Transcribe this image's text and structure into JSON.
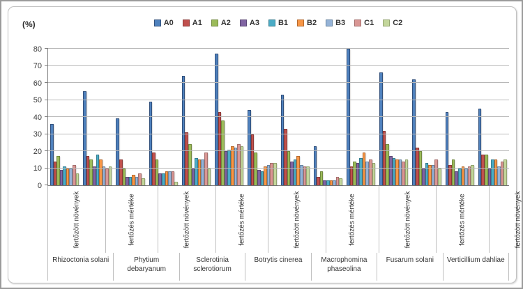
{
  "chart_data": {
    "type": "bar",
    "title": "",
    "ylabel": "(%)",
    "xlabel": "",
    "ylim": [
      0,
      80
    ],
    "ytick_step": 10,
    "grid": true,
    "legend_position": "top",
    "series": [
      {
        "name": "A0",
        "color": "#4F81BD",
        "border": "#31507C"
      },
      {
        "name": "A1",
        "color": "#C0504D",
        "border": "#8C3836"
      },
      {
        "name": "A2",
        "color": "#9BBB59",
        "border": "#71893E"
      },
      {
        "name": "A3",
        "color": "#8064A2",
        "border": "#5C4776"
      },
      {
        "name": "B1",
        "color": "#4BACC6",
        "border": "#357D91"
      },
      {
        "name": "B2",
        "color": "#F79646",
        "border": "#B56A2E"
      },
      {
        "name": "B3",
        "color": "#95B3D7",
        "border": "#6884A0"
      },
      {
        "name": "C1",
        "color": "#D99694",
        "border": "#A56F6D"
      },
      {
        "name": "C2",
        "color": "#C3D69B",
        "border": "#93A46F"
      }
    ],
    "sub_labels": [
      "fertőzött növények",
      "fertőzés mértéke"
    ],
    "groups": [
      {
        "name": "Rhizoctonia solani",
        "clusters": [
          [
            36,
            14,
            17,
            9,
            11,
            10,
            10,
            12,
            7
          ],
          [
            55,
            17,
            15,
            11,
            18,
            15,
            11,
            10,
            11
          ]
        ]
      },
      {
        "name": "Phytium debaryanum",
        "clusters": [
          [
            39,
            15,
            10,
            5,
            5,
            6,
            5,
            7,
            4
          ],
          [
            49,
            19,
            15,
            7,
            7,
            8,
            8,
            8,
            2
          ]
        ]
      },
      {
        "name": "Sclerotinia sclerotiorum",
        "clusters": [
          [
            64,
            31,
            24,
            10,
            16,
            15,
            15,
            19,
            10
          ],
          [
            77,
            43,
            38,
            20,
            21,
            23,
            22,
            24,
            23
          ]
        ]
      },
      {
        "name": "Botrytis cinerea",
        "clusters": [
          [
            44,
            30,
            19,
            9,
            8,
            11,
            12,
            13,
            13
          ],
          [
            53,
            33,
            20,
            14,
            15,
            17,
            12,
            11,
            11
          ]
        ]
      },
      {
        "name": "Macrophomina phaseolina",
        "clusters": [
          [
            23,
            5,
            8,
            3,
            3,
            3,
            3,
            5,
            4
          ],
          [
            80,
            11,
            14,
            13,
            16,
            19,
            14,
            15,
            13
          ]
        ]
      },
      {
        "name": "Fusarum solani",
        "clusters": [
          [
            66,
            32,
            24,
            17,
            16,
            15,
            15,
            14,
            15
          ],
          [
            62,
            22,
            20,
            10,
            13,
            12,
            12,
            15,
            10
          ]
        ]
      },
      {
        "name": "Verticillium dahliae",
        "clusters": [
          [
            43,
            12,
            15,
            8,
            10,
            11,
            10,
            11,
            12
          ],
          [
            45,
            18,
            18,
            10,
            15,
            15,
            11,
            14,
            15
          ]
        ]
      }
    ]
  }
}
